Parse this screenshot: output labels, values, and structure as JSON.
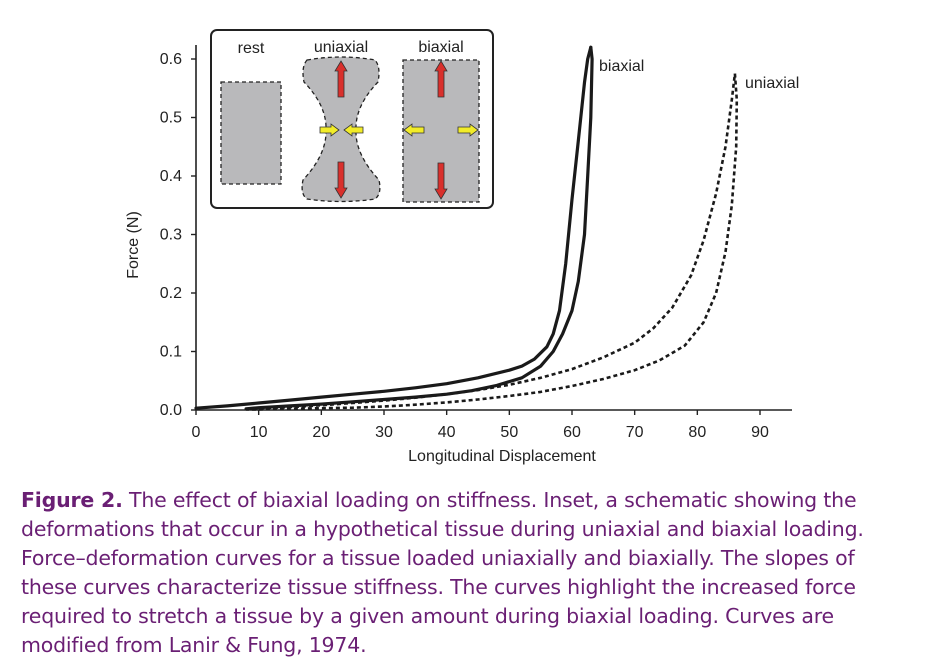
{
  "caption": {
    "lead": "Figure 2.",
    "text": " The effect of biaxial loading on stiffness. Inset, a schematic showing the deformations that occur in a hypothetical tissue during uniaxial and biaxial loading. Force–deformation curves for a tissue loaded uniaxially and biaxially. The slopes of these curves characterize tissue stiffness. The curves highlight the increased force required to stretch a tissue by a given amount during biaxial loading. Curves are modified from Lanir & Fung, 1974."
  },
  "inset": {
    "labels": [
      "rest",
      "uniaxial",
      "biaxial"
    ]
  },
  "colors": {
    "shape_fill": "#b9b9bb",
    "arrow_red": "#d9302c",
    "arrow_yellow": "#f2ec28",
    "caption": "#6a1f74"
  },
  "chart_data": {
    "type": "line",
    "xlabel": "Longitudinal Displacement",
    "ylabel": "Force (N)",
    "xlim": [
      0,
      95
    ],
    "ylim": [
      0,
      0.63
    ],
    "xticks": [
      0,
      10,
      20,
      30,
      40,
      50,
      60,
      70,
      80,
      90
    ],
    "yticks": [
      "0.0",
      "0.1",
      "0.2",
      "0.3",
      "0.4",
      "0.5",
      "0.6"
    ],
    "series": [
      {
        "name": "biaxial",
        "style": "solid",
        "loading_curve": [
          [
            0,
            0.003
          ],
          [
            5,
            0.007
          ],
          [
            10,
            0.012
          ],
          [
            15,
            0.017
          ],
          [
            20,
            0.022
          ],
          [
            25,
            0.027
          ],
          [
            30,
            0.032
          ],
          [
            35,
            0.038
          ],
          [
            40,
            0.045
          ],
          [
            45,
            0.055
          ],
          [
            50,
            0.068
          ],
          [
            52,
            0.075
          ],
          [
            54,
            0.087
          ],
          [
            56,
            0.108
          ],
          [
            57,
            0.13
          ],
          [
            58,
            0.17
          ],
          [
            59,
            0.25
          ],
          [
            60,
            0.36
          ],
          [
            61,
            0.46
          ],
          [
            62,
            0.56
          ],
          [
            62.5,
            0.6
          ],
          [
            63,
            0.62
          ]
        ],
        "unloading_curve": [
          [
            63,
            0.62
          ],
          [
            63.2,
            0.6
          ],
          [
            63,
            0.5
          ],
          [
            62.5,
            0.4
          ],
          [
            62,
            0.3
          ],
          [
            61,
            0.22
          ],
          [
            60,
            0.17
          ],
          [
            58.5,
            0.13
          ],
          [
            57,
            0.1
          ],
          [
            55,
            0.075
          ],
          [
            52,
            0.055
          ],
          [
            48,
            0.042
          ],
          [
            44,
            0.033
          ],
          [
            40,
            0.027
          ],
          [
            35,
            0.022
          ],
          [
            30,
            0.018
          ],
          [
            25,
            0.014
          ],
          [
            20,
            0.01
          ],
          [
            15,
            0.007
          ],
          [
            10,
            0.004
          ],
          [
            8,
            0.002
          ]
        ]
      },
      {
        "name": "uniaxial",
        "style": "dashed",
        "loading_curve": [
          [
            8,
            0.002
          ],
          [
            15,
            0.005
          ],
          [
            20,
            0.008
          ],
          [
            25,
            0.012
          ],
          [
            30,
            0.016
          ],
          [
            35,
            0.021
          ],
          [
            40,
            0.027
          ],
          [
            45,
            0.034
          ],
          [
            50,
            0.043
          ],
          [
            55,
            0.055
          ],
          [
            60,
            0.07
          ],
          [
            65,
            0.09
          ],
          [
            70,
            0.115
          ],
          [
            73,
            0.14
          ],
          [
            76,
            0.175
          ],
          [
            79,
            0.23
          ],
          [
            81,
            0.29
          ],
          [
            83,
            0.37
          ],
          [
            84.5,
            0.45
          ],
          [
            85.5,
            0.53
          ],
          [
            86,
            0.575
          ]
        ],
        "unloading_curve": [
          [
            86,
            0.575
          ],
          [
            86.3,
            0.53
          ],
          [
            86.2,
            0.45
          ],
          [
            85.5,
            0.35
          ],
          [
            84.5,
            0.27
          ],
          [
            83,
            0.2
          ],
          [
            81,
            0.15
          ],
          [
            78,
            0.11
          ],
          [
            74,
            0.085
          ],
          [
            70,
            0.068
          ],
          [
            65,
            0.053
          ],
          [
            60,
            0.041
          ],
          [
            55,
            0.031
          ],
          [
            50,
            0.024
          ],
          [
            45,
            0.018
          ],
          [
            40,
            0.013
          ],
          [
            35,
            0.009
          ],
          [
            30,
            0.006
          ],
          [
            25,
            0.004
          ],
          [
            20,
            0.003
          ],
          [
            15,
            0.002
          ],
          [
            10,
            0.001
          ],
          [
            8,
            0.001
          ]
        ]
      }
    ]
  }
}
